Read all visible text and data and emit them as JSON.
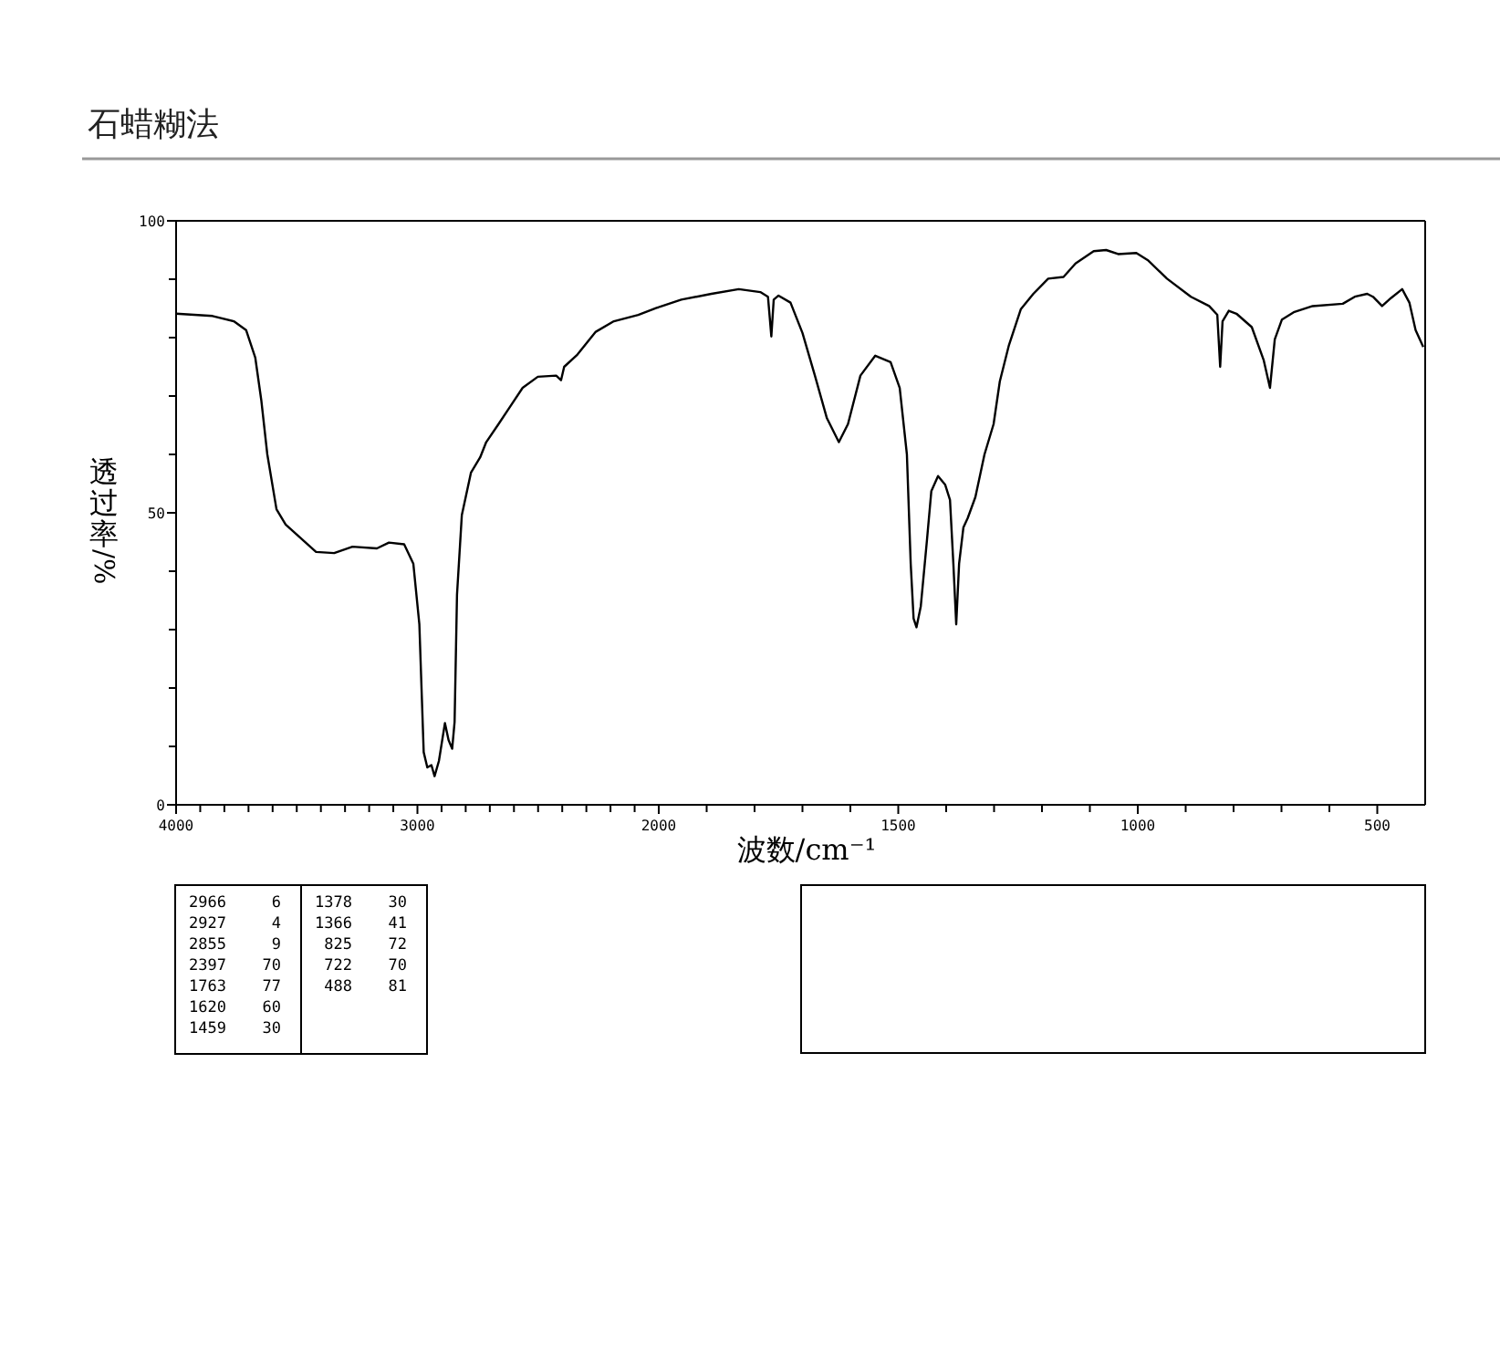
{
  "chart_data": [
    {
      "type": "line",
      "title": "石蜡糊法",
      "ylabel": "透过率/%",
      "xlim": [
        4000,
        2000
      ],
      "ylim": [
        0,
        100
      ],
      "xticks": [
        4000,
        {
          "value": 3900,
          "label": null
        },
        {
          "value": 3800,
          "label": null
        },
        {
          "value": 3700,
          "label": null
        },
        {
          "value": 3600,
          "label": null
        },
        {
          "value": 3500,
          "label": null
        },
        {
          "value": 3400,
          "label": null
        },
        {
          "value": 3300,
          "label": null
        },
        {
          "value": 3200,
          "label": null
        },
        {
          "value": 3100,
          "label": null
        },
        3000,
        {
          "value": 2900,
          "label": null
        },
        {
          "value": 2800,
          "label": null
        },
        {
          "value": 2700,
          "label": null
        },
        {
          "value": 2600,
          "label": null
        },
        {
          "value": 2500,
          "label": null
        },
        {
          "value": 2400,
          "label": null
        },
        {
          "value": 2300,
          "label": null
        },
        {
          "value": 2200,
          "label": null
        },
        {
          "value": 2100,
          "label": null
        }
      ],
      "yticks": [
        0,
        {
          "value": 10,
          "label": null
        },
        {
          "value": 20,
          "label": null
        },
        {
          "value": 30,
          "label": null
        },
        {
          "value": 40,
          "label": null
        },
        50,
        {
          "value": 60,
          "label": null
        },
        {
          "value": 70,
          "label": null
        },
        {
          "value": 80,
          "label": null
        },
        {
          "value": 90,
          "label": null
        },
        100
      ],
      "grid": false,
      "marker": "none",
      "line_style": "solid",
      "series": [
        {
          "color": "#000000",
          "x": [
            4000,
            3849,
            3761,
            3710,
            3672,
            3647,
            3622,
            3584,
            3546,
            3420,
            3345,
            3269,
            3168,
            3118,
            3055,
            3017,
            2992,
            2974,
            2959,
            2942,
            2929,
            2911,
            2886,
            2871,
            2856,
            2846,
            2836,
            2816,
            2778,
            2740,
            2715,
            2664,
            2614,
            2564,
            2501,
            2425,
            2405,
            2392,
            2337,
            2261,
            2186,
            2085,
            2009,
            2000
          ],
          "values": [
            84.1,
            83.7,
            82.8,
            81.3,
            76.6,
            69.3,
            60,
            50.6,
            48,
            43.3,
            43.1,
            44.2,
            43.9,
            44.9,
            44.6,
            41.3,
            30.9,
            9,
            6.4,
            6.8,
            4.9,
            7.5,
            14,
            11.1,
            9.6,
            14.2,
            36,
            49.6,
            56.9,
            59.5,
            62.1,
            65.2,
            68.3,
            71.4,
            73.3,
            73.5,
            72.7,
            75,
            77.1,
            81,
            82.8,
            83.9,
            85.1,
            85.2
          ]
        }
      ],
      "annotations": [
        "2966 6",
        "2927 4",
        "2855 9",
        "2397 70",
        "1763 77",
        "1620 60",
        "1459 30",
        "1378 30",
        "1366 41",
        "825 72",
        "722 70",
        "488 81"
      ]
    },
    {
      "type": "line",
      "xlabel": "波数/cm⁻¹",
      "xlim": [
        2000,
        400
      ],
      "ylim": [
        0,
        100
      ],
      "tick_labels": "x",
      "xticks": [
        2000,
        {
          "value": 1900,
          "label": null
        },
        {
          "value": 1800,
          "label": null
        },
        {
          "value": 1700,
          "label": null
        },
        {
          "value": 1600,
          "label": null
        },
        1500,
        {
          "value": 1400,
          "label": null
        },
        {
          "value": 1300,
          "label": null
        },
        {
          "value": 1200,
          "label": null
        },
        {
          "value": 1100,
          "label": null
        },
        1000,
        {
          "value": 900,
          "label": null
        },
        {
          "value": 800,
          "label": null
        },
        {
          "value": 700,
          "label": null
        },
        {
          "value": 600,
          "label": null
        },
        500
      ],
      "grid": false,
      "marker": "none",
      "line_style": "solid",
      "series": [
        {
          "color": "#000000",
          "x": [
            2000,
            1953,
            1890,
            1833,
            1788,
            1772,
            1765,
            1760,
            1750,
            1725,
            1700,
            1674,
            1649,
            1624,
            1605,
            1579,
            1548,
            1516,
            1497,
            1482,
            1474,
            1468,
            1462,
            1453,
            1440,
            1431,
            1417,
            1402,
            1392,
            1385,
            1379,
            1373,
            1364,
            1355,
            1339,
            1320,
            1301,
            1288,
            1269,
            1244,
            1218,
            1187,
            1155,
            1130,
            1092,
            1066,
            1041,
            1003,
            978,
            939,
            889,
            851,
            834,
            828,
            823,
            810,
            794,
            762,
            737,
            724,
            714,
            699,
            673,
            635,
            572,
            547,
            521,
            509,
            490,
            471,
            448,
            433,
            420,
            404
          ],
          "values": [
            85.2,
            86.5,
            87.5,
            88.3,
            87.8,
            87,
            80.2,
            86.5,
            87.2,
            86,
            80.8,
            73.5,
            66.2,
            62.1,
            65.2,
            73.5,
            76.9,
            75.8,
            71.4,
            60,
            41.3,
            31.9,
            30.4,
            34,
            45.4,
            53.7,
            56.3,
            54.8,
            52.2,
            41.3,
            30.9,
            41.3,
            47.5,
            49.1,
            52.7,
            60,
            65.2,
            72.5,
            78.7,
            84.9,
            87.5,
            90.1,
            90.4,
            92.7,
            94.8,
            95,
            94.3,
            94.5,
            93.2,
            90.1,
            87,
            85.4,
            83.9,
            75,
            82.8,
            84.6,
            84.1,
            81.8,
            76.1,
            71.4,
            79.7,
            83.1,
            84.4,
            85.4,
            85.8,
            87,
            87.5,
            87,
            85.4,
            86.8,
            88.3,
            86,
            81.3,
            78.4
          ]
        }
      ]
    }
  ]
}
